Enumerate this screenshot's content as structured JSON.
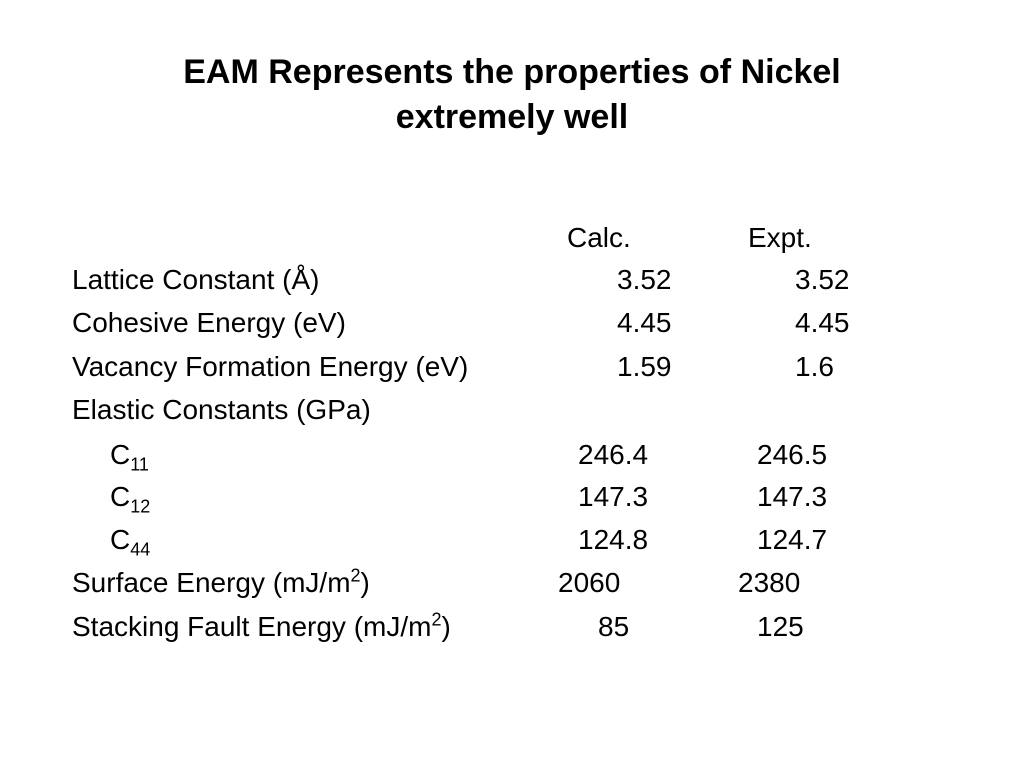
{
  "title": [
    "EAM Represents the properties of Nickel",
    "extremely well"
  ],
  "table": {
    "header": [
      "Calc.",
      "Expt."
    ],
    "rows": [
      {
        "label": "Lattice Constant (Å)",
        "calc": "3.52",
        "expt": "3.52"
      },
      {
        "label": "Cohesive Energy (eV)",
        "calc": "4.45",
        "expt": "4.45"
      },
      {
        "label": "Vacancy Formation Energy (eV)",
        "calc": "1.59",
        "expt": "1.6"
      },
      {
        "label": "Elastic Constants (GPa)"
      },
      {
        "label": "C",
        "sub": "11",
        "calc": "246.4",
        "expt": "246.5"
      },
      {
        "label": "C",
        "sub": "12",
        "calc": "147.3",
        "expt": "147.3"
      },
      {
        "label": "C",
        "sub": "44",
        "calc": "124.8",
        "expt": "124.7"
      },
      {
        "label": "Surface Energy (mJ/m",
        "sup": "2",
        "suffix": ")",
        "calc": "2060",
        "expt": "2380"
      },
      {
        "label": "Stacking Fault Energy (mJ/m",
        "sup": "2",
        "suffix": ")",
        "calc": "85",
        "expt": "125"
      }
    ]
  }
}
